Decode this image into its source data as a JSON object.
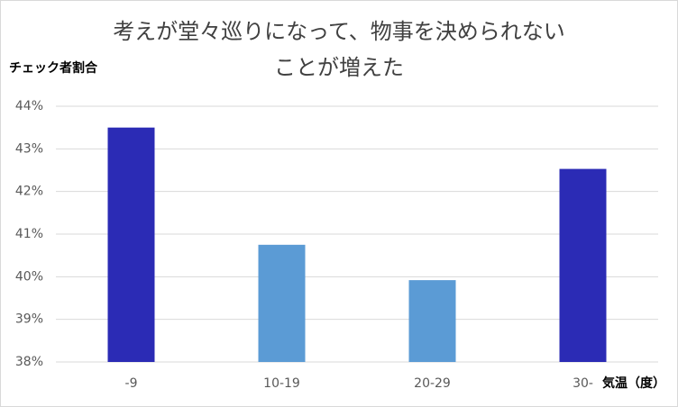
{
  "chart_data": {
    "type": "bar",
    "title": [
      "考えが堂々巡りになって、物事を決められない",
      "ことが増えた"
    ],
    "y_label": "チェック者割合",
    "x_label": "気温（度）",
    "categories": [
      "-9",
      "10-19",
      "20-29",
      "30-"
    ],
    "values": [
      43.5,
      40.75,
      39.92,
      42.53
    ],
    "colors": [
      "#2b2bb5",
      "#5b9bd5",
      "#5b9bd5",
      "#2b2bb5"
    ],
    "ylim": [
      38,
      44
    ],
    "yticks": [
      {
        "value": 38,
        "label": "38%"
      },
      {
        "value": 39,
        "label": "39%"
      },
      {
        "value": 40,
        "label": "40%"
      },
      {
        "value": 41,
        "label": "41%"
      },
      {
        "value": 42,
        "label": "42%"
      },
      {
        "value": 43,
        "label": "43%"
      },
      {
        "value": 44,
        "label": "44%"
      }
    ],
    "grid": true
  }
}
